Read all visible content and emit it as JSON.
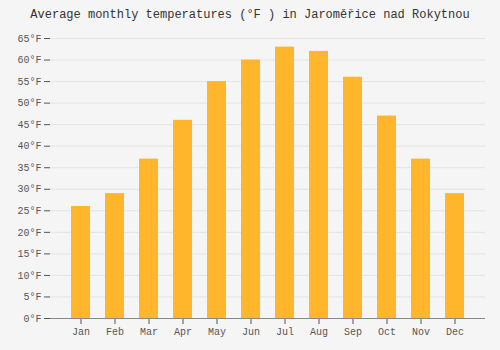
{
  "chart_data": {
    "type": "bar",
    "title": "Average monthly temperatures (°F ) in Jaroměřice nad Rokytnou",
    "categories": [
      "Jan",
      "Feb",
      "Mar",
      "Apr",
      "May",
      "Jun",
      "Jul",
      "Aug",
      "Sep",
      "Oct",
      "Nov",
      "Dec"
    ],
    "values": [
      26,
      29,
      37,
      46,
      55,
      60,
      63,
      62,
      56,
      47,
      37,
      29
    ],
    "color": "#ffb62d",
    "ylim": [
      0,
      65
    ],
    "yticks": [
      {
        "value": 0,
        "label": "0°F"
      },
      {
        "value": 5,
        "label": "5°F"
      },
      {
        "value": 10,
        "label": "10°F"
      },
      {
        "value": 15,
        "label": "15°F"
      },
      {
        "value": 20,
        "label": "20°F"
      },
      {
        "value": 25,
        "label": "25°F"
      },
      {
        "value": 30,
        "label": "30°F"
      },
      {
        "value": 35,
        "label": "35°F"
      },
      {
        "value": 40,
        "label": "40°F"
      },
      {
        "value": 45,
        "label": "45°F"
      },
      {
        "value": 50,
        "label": "50°F"
      },
      {
        "value": 55,
        "label": "55°F"
      },
      {
        "value": 60,
        "label": "60°F"
      },
      {
        "value": 65,
        "label": "65°F"
      }
    ],
    "grid": true
  }
}
